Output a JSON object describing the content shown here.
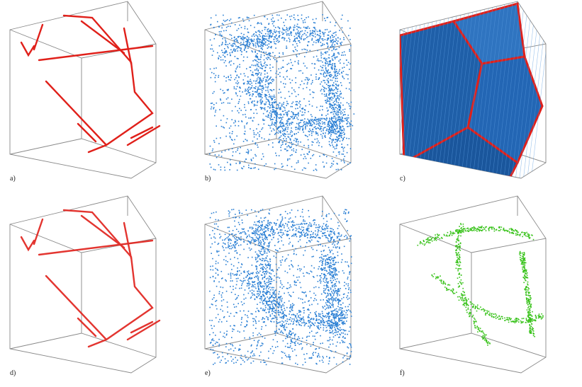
{
  "panels": [
    {
      "label": "a)"
    },
    {
      "label": "b)"
    },
    {
      "label": "c)"
    },
    {
      "label": "d)"
    },
    {
      "label": "e)"
    },
    {
      "label": "f)"
    }
  ]
}
